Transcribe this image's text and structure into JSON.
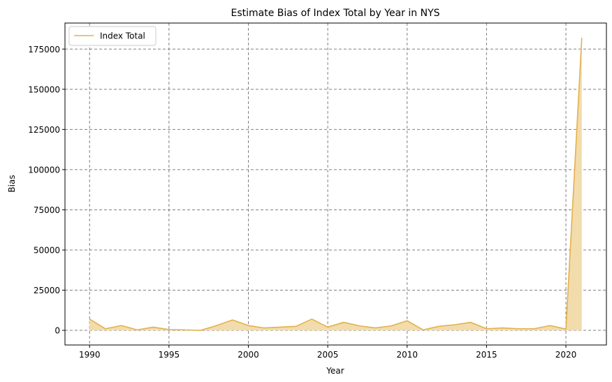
{
  "chart_data": {
    "type": "area",
    "title": "Estimate Bias of Index Total by Year in NYS",
    "xlabel": "Year",
    "ylabel": "Bias",
    "xlim": [
      1988.45,
      2022.55
    ],
    "ylim": [
      -9100,
      191200
    ],
    "xticks": [
      1990,
      1995,
      2000,
      2005,
      2010,
      2015,
      2020
    ],
    "yticks": [
      0,
      25000,
      50000,
      75000,
      100000,
      125000,
      150000,
      175000
    ],
    "grid": true,
    "legend_position": "top-left",
    "series": [
      {
        "name": "Index Total",
        "color": "#e3b14a",
        "fill_color": "#f2dcac",
        "x": [
          1990,
          1991,
          1992,
          1993,
          1994,
          1995,
          1996,
          1997,
          1998,
          1999,
          2000,
          2001,
          2002,
          2003,
          2004,
          2005,
          2006,
          2007,
          2008,
          2009,
          2010,
          2011,
          2012,
          2013,
          2014,
          2015,
          2016,
          2017,
          2018,
          2019,
          2020,
          2021
        ],
        "values": [
          7000,
          1000,
          3000,
          300,
          2000,
          500,
          300,
          0,
          3000,
          6500,
          3000,
          1500,
          2000,
          2500,
          7000,
          2000,
          5000,
          2800,
          1500,
          2800,
          6000,
          300,
          2500,
          3500,
          5000,
          1000,
          1500,
          1000,
          1000,
          3000,
          800,
          182000
        ]
      }
    ]
  }
}
